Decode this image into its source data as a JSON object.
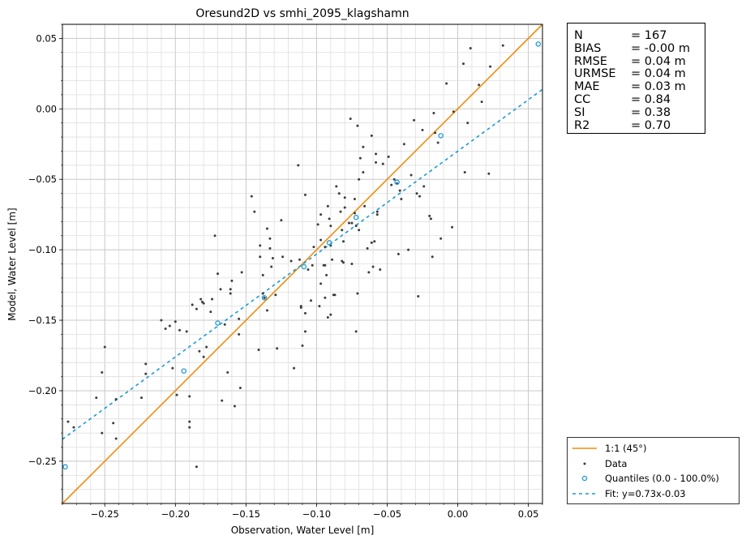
{
  "chart_data": {
    "type": "scatter",
    "title": "Oresund2D vs smhi_2095_klagshamn",
    "xlabel": "Observation, Water Level [m]",
    "ylabel": "Model, Water Level [m]",
    "xlim": [
      -0.28,
      0.06
    ],
    "ylim": [
      -0.28,
      0.06
    ],
    "xticks": [
      -0.25,
      -0.2,
      -0.15,
      -0.1,
      -0.05,
      0.0,
      0.05
    ],
    "yticks": [
      -0.25,
      -0.2,
      -0.15,
      -0.1,
      -0.05,
      0.0,
      0.05
    ],
    "xtick_labels": [
      "−0.25",
      "−0.20",
      "−0.15",
      "−0.10",
      "−0.05",
      "0.00",
      "0.05"
    ],
    "ytick_labels": [
      "−0.25",
      "−0.20",
      "−0.15",
      "−0.10",
      "−0.05",
      "0.00",
      "0.05"
    ],
    "grid": true,
    "series": [
      {
        "name": "1:1 (45°)",
        "kind": "line",
        "color": "#f28c0d",
        "points": [
          [
            -0.28,
            -0.28
          ],
          [
            0.06,
            0.06
          ]
        ]
      },
      {
        "name": "Data",
        "kind": "scatter",
        "color": "#3d3d3d",
        "points": [
          [
            -0.276,
            -0.222
          ],
          [
            -0.272,
            -0.226
          ],
          [
            -0.256,
            -0.205
          ],
          [
            -0.252,
            -0.23
          ],
          [
            -0.252,
            -0.187
          ],
          [
            -0.25,
            -0.169
          ],
          [
            -0.244,
            -0.223
          ],
          [
            -0.242,
            -0.206
          ],
          [
            -0.242,
            -0.234
          ],
          [
            -0.224,
            -0.205
          ],
          [
            -0.221,
            -0.181
          ],
          [
            -0.221,
            -0.188
          ],
          [
            -0.21,
            -0.15
          ],
          [
            -0.207,
            -0.156
          ],
          [
            -0.204,
            -0.154
          ],
          [
            -0.202,
            -0.184
          ],
          [
            -0.2,
            -0.151
          ],
          [
            -0.199,
            -0.203
          ],
          [
            -0.197,
            -0.157
          ],
          [
            -0.192,
            -0.158
          ],
          [
            -0.19,
            -0.204
          ],
          [
            -0.19,
            -0.222
          ],
          [
            -0.19,
            -0.226
          ],
          [
            -0.188,
            -0.139
          ],
          [
            -0.185,
            -0.142
          ],
          [
            -0.185,
            -0.254
          ],
          [
            -0.183,
            -0.172
          ],
          [
            -0.182,
            -0.135
          ],
          [
            -0.181,
            -0.137
          ],
          [
            -0.18,
            -0.138
          ],
          [
            -0.18,
            -0.176
          ],
          [
            -0.178,
            -0.169
          ],
          [
            -0.175,
            -0.144
          ],
          [
            -0.174,
            -0.135
          ],
          [
            -0.172,
            -0.09
          ],
          [
            -0.17,
            -0.117
          ],
          [
            -0.168,
            -0.128
          ],
          [
            -0.167,
            -0.207
          ],
          [
            -0.165,
            -0.153
          ],
          [
            -0.163,
            -0.187
          ],
          [
            -0.161,
            -0.128
          ],
          [
            -0.161,
            -0.131
          ],
          [
            -0.16,
            -0.122
          ],
          [
            -0.158,
            -0.211
          ],
          [
            -0.155,
            -0.16
          ],
          [
            -0.155,
            -0.149
          ],
          [
            -0.154,
            -0.198
          ],
          [
            -0.153,
            -0.116
          ],
          [
            -0.146,
            -0.062
          ],
          [
            -0.144,
            -0.073
          ],
          [
            -0.141,
            -0.171
          ],
          [
            -0.14,
            -0.097
          ],
          [
            -0.14,
            -0.105
          ],
          [
            -0.138,
            -0.118
          ],
          [
            -0.138,
            -0.131
          ],
          [
            -0.137,
            -0.134
          ],
          [
            -0.135,
            -0.143
          ],
          [
            -0.135,
            -0.085
          ],
          [
            -0.133,
            -0.092
          ],
          [
            -0.133,
            -0.099
          ],
          [
            -0.132,
            -0.112
          ],
          [
            -0.131,
            -0.106
          ],
          [
            -0.129,
            -0.132
          ],
          [
            -0.128,
            -0.17
          ],
          [
            -0.125,
            -0.079
          ],
          [
            -0.124,
            -0.105
          ],
          [
            -0.118,
            -0.108
          ],
          [
            -0.116,
            -0.184
          ],
          [
            -0.113,
            -0.04
          ],
          [
            -0.112,
            -0.107
          ],
          [
            -0.111,
            -0.14
          ],
          [
            -0.111,
            -0.141
          ],
          [
            -0.11,
            -0.168
          ],
          [
            -0.108,
            -0.145
          ],
          [
            -0.108,
            -0.158
          ],
          [
            -0.108,
            -0.061
          ],
          [
            -0.106,
            -0.114
          ],
          [
            -0.104,
            -0.136
          ],
          [
            -0.103,
            -0.111
          ],
          [
            -0.102,
            -0.098
          ],
          [
            -0.099,
            -0.082
          ],
          [
            -0.098,
            -0.14
          ],
          [
            -0.097,
            -0.124
          ],
          [
            -0.097,
            -0.093
          ],
          [
            -0.097,
            -0.075
          ],
          [
            -0.095,
            -0.111
          ],
          [
            -0.094,
            -0.134
          ],
          [
            -0.094,
            -0.098
          ],
          [
            -0.094,
            -0.111
          ],
          [
            -0.093,
            -0.118
          ],
          [
            -0.092,
            -0.069
          ],
          [
            -0.092,
            -0.148
          ],
          [
            -0.091,
            -0.078
          ],
          [
            -0.09,
            -0.083
          ],
          [
            -0.09,
            -0.097
          ],
          [
            -0.09,
            -0.146
          ],
          [
            -0.089,
            -0.107
          ],
          [
            -0.088,
            -0.132
          ],
          [
            -0.087,
            -0.132
          ],
          [
            -0.086,
            -0.055
          ],
          [
            -0.084,
            -0.06
          ],
          [
            -0.083,
            -0.073
          ],
          [
            -0.082,
            -0.086
          ],
          [
            -0.082,
            -0.108
          ],
          [
            -0.081,
            -0.109
          ],
          [
            -0.081,
            -0.094
          ],
          [
            -0.08,
            -0.07
          ],
          [
            -0.08,
            -0.063
          ],
          [
            -0.077,
            -0.081
          ],
          [
            -0.076,
            -0.007
          ],
          [
            -0.075,
            -0.11
          ],
          [
            -0.075,
            -0.081
          ],
          [
            -0.073,
            -0.064
          ],
          [
            -0.073,
            -0.074
          ],
          [
            -0.072,
            -0.083
          ],
          [
            -0.072,
            -0.158
          ],
          [
            -0.071,
            -0.131
          ],
          [
            -0.071,
            -0.012
          ],
          [
            -0.07,
            -0.086
          ],
          [
            -0.07,
            -0.05
          ],
          [
            -0.069,
            -0.035
          ],
          [
            -0.067,
            -0.027
          ],
          [
            -0.067,
            -0.045
          ],
          [
            -0.066,
            -0.069
          ],
          [
            -0.064,
            -0.099
          ],
          [
            -0.063,
            -0.116
          ],
          [
            -0.061,
            -0.019
          ],
          [
            -0.061,
            -0.095
          ],
          [
            -0.06,
            -0.112
          ],
          [
            -0.059,
            -0.094
          ],
          [
            -0.058,
            -0.032
          ],
          [
            -0.058,
            -0.038
          ],
          [
            -0.057,
            -0.073
          ],
          [
            -0.057,
            -0.075
          ],
          [
            -0.055,
            -0.114
          ],
          [
            -0.053,
            -0.039
          ],
          [
            -0.049,
            -0.034
          ],
          [
            -0.047,
            -0.054
          ],
          [
            -0.045,
            -0.05
          ],
          [
            -0.043,
            -0.053
          ],
          [
            -0.042,
            -0.103
          ],
          [
            -0.041,
            -0.058
          ],
          [
            -0.04,
            -0.064
          ],
          [
            -0.038,
            -0.025
          ],
          [
            -0.035,
            -0.1
          ],
          [
            -0.033,
            -0.047
          ],
          [
            -0.031,
            -0.008
          ],
          [
            -0.029,
            -0.06
          ],
          [
            -0.028,
            -0.133
          ],
          [
            -0.027,
            -0.062
          ],
          [
            -0.025,
            -0.015
          ],
          [
            -0.024,
            -0.055
          ],
          [
            -0.02,
            -0.076
          ],
          [
            -0.019,
            -0.078
          ],
          [
            -0.018,
            -0.105
          ],
          [
            -0.017,
            -0.003
          ],
          [
            -0.016,
            -0.017
          ],
          [
            -0.014,
            -0.024
          ],
          [
            -0.012,
            -0.092
          ],
          [
            -0.008,
            0.018
          ],
          [
            -0.004,
            -0.084
          ],
          [
            -0.003,
            -0.002
          ],
          [
            0.004,
            0.032
          ],
          [
            0.005,
            -0.045
          ],
          [
            0.007,
            -0.01
          ],
          [
            0.009,
            0.043
          ],
          [
            0.015,
            0.017
          ],
          [
            0.017,
            0.005
          ],
          [
            0.022,
            -0.046
          ],
          [
            0.023,
            0.03
          ],
          [
            0.032,
            0.045
          ]
        ]
      },
      {
        "name": "Quantiles (0.0 - 100.0%)",
        "kind": "scatter-open",
        "color": "#1a9ad6",
        "points": [
          [
            -0.278,
            -0.254
          ],
          [
            -0.194,
            -0.186
          ],
          [
            -0.17,
            -0.152
          ],
          [
            -0.137,
            -0.134
          ],
          [
            -0.109,
            -0.112
          ],
          [
            -0.091,
            -0.095
          ],
          [
            -0.072,
            -0.077
          ],
          [
            -0.043,
            -0.052
          ],
          [
            -0.012,
            -0.019
          ],
          [
            0.057,
            0.046
          ]
        ]
      },
      {
        "name": "Fit: y=0.73x-0.03",
        "kind": "dashed-line",
        "color": "#1a9ad6",
        "slope": 0.73,
        "intercept": -0.03
      }
    ]
  },
  "stats": {
    "rows": [
      {
        "name": "N",
        "value": "= 167"
      },
      {
        "name": "BIAS",
        "value": "= -0.00 m"
      },
      {
        "name": "RMSE",
        "value": "= 0.04 m"
      },
      {
        "name": "URMSE",
        "value": "= 0.04 m"
      },
      {
        "name": "MAE",
        "value": "= 0.03 m"
      },
      {
        "name": "CC",
        "value": "= 0.84"
      },
      {
        "name": "SI",
        "value": "= 0.38"
      },
      {
        "name": "R2",
        "value": "= 0.70"
      }
    ]
  },
  "legend": {
    "entries": [
      {
        "label": "1:1 (45°)",
        "marker": "line",
        "color": "#f28c0d"
      },
      {
        "label": "Data",
        "marker": "dot",
        "color": "#3d3d3d"
      },
      {
        "label": "Quantiles (0.0 - 100.0%)",
        "marker": "circle",
        "color": "#1a9ad6"
      },
      {
        "label": "Fit: y=0.73x-0.03",
        "marker": "dashed",
        "color": "#1a9ad6"
      }
    ]
  }
}
